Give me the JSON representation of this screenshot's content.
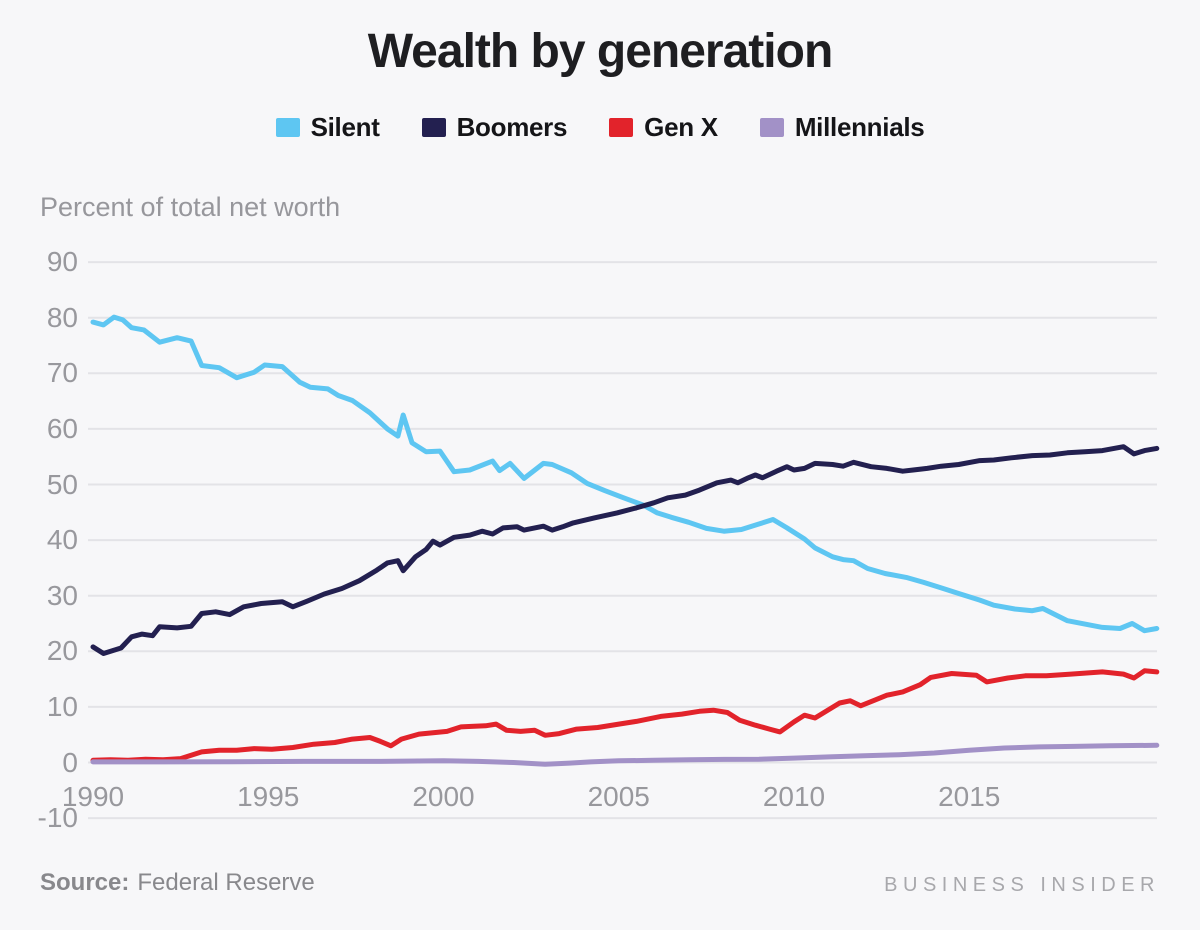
{
  "header": {
    "title": "Wealth by generation"
  },
  "axis_title": "Percent of total net worth",
  "footer": {
    "source_prefix": "Source:",
    "source_value": "Federal Reserve",
    "brand": "BUSINESS INSIDER"
  },
  "colors": {
    "background": "#f7f7f9",
    "gridline": "#e3e3e7",
    "axis_text": "#98989d",
    "title_text": "#1e1e21"
  },
  "chart_data": {
    "type": "line",
    "title": "Wealth by generation",
    "xlabel": "",
    "ylabel": "Percent of total net worth",
    "xlim": [
      1990,
      2020.4
    ],
    "ylim": [
      -10,
      90
    ],
    "x_ticks": [
      1990,
      1995,
      2000,
      2005,
      2010,
      2015
    ],
    "y_ticks": [
      90,
      80,
      70,
      60,
      50,
      40,
      30,
      20,
      10,
      0,
      -10
    ],
    "grid": "horizontal",
    "legend_position": "top",
    "series": [
      {
        "name": "Silent",
        "color": "#5ec6f2",
        "points": [
          [
            1990.0,
            79.2
          ],
          [
            1990.3,
            78.7
          ],
          [
            1990.6,
            80.1
          ],
          [
            1990.85,
            79.6
          ],
          [
            1991.1,
            78.2
          ],
          [
            1991.45,
            77.8
          ],
          [
            1991.9,
            75.6
          ],
          [
            1992.4,
            76.4
          ],
          [
            1992.8,
            75.8
          ],
          [
            1993.1,
            71.4
          ],
          [
            1993.6,
            71.0
          ],
          [
            1994.1,
            69.2
          ],
          [
            1994.6,
            70.2
          ],
          [
            1994.9,
            71.5
          ],
          [
            1995.4,
            71.2
          ],
          [
            1995.9,
            68.4
          ],
          [
            1996.2,
            67.5
          ],
          [
            1996.7,
            67.2
          ],
          [
            1997.0,
            66.0
          ],
          [
            1997.4,
            65.1
          ],
          [
            1997.9,
            62.9
          ],
          [
            1998.4,
            60.0
          ],
          [
            1998.7,
            58.7
          ],
          [
            1998.85,
            62.5
          ],
          [
            1999.1,
            57.5
          ],
          [
            1999.5,
            55.9
          ],
          [
            1999.9,
            56.0
          ],
          [
            2000.3,
            52.3
          ],
          [
            2000.75,
            52.6
          ],
          [
            2001.4,
            54.2
          ],
          [
            2001.6,
            52.5
          ],
          [
            2001.9,
            53.8
          ],
          [
            2002.3,
            51.1
          ],
          [
            2002.85,
            53.8
          ],
          [
            2003.1,
            53.6
          ],
          [
            2003.65,
            52.1
          ],
          [
            2004.1,
            50.2
          ],
          [
            2004.6,
            48.9
          ],
          [
            2005.1,
            47.7
          ],
          [
            2005.7,
            46.3
          ],
          [
            2006.1,
            44.9
          ],
          [
            2006.5,
            44.1
          ],
          [
            2007.0,
            43.2
          ],
          [
            2007.5,
            42.1
          ],
          [
            2008.0,
            41.6
          ],
          [
            2008.5,
            41.9
          ],
          [
            2009.0,
            42.9
          ],
          [
            2009.4,
            43.7
          ],
          [
            2009.8,
            42.2
          ],
          [
            2010.3,
            40.2
          ],
          [
            2010.6,
            38.6
          ],
          [
            2011.1,
            37.0
          ],
          [
            2011.4,
            36.5
          ],
          [
            2011.7,
            36.3
          ],
          [
            2012.1,
            34.9
          ],
          [
            2012.6,
            34.0
          ],
          [
            2013.2,
            33.3
          ],
          [
            2013.7,
            32.4
          ],
          [
            2014.2,
            31.4
          ],
          [
            2014.7,
            30.4
          ],
          [
            2015.3,
            29.2
          ],
          [
            2015.7,
            28.3
          ],
          [
            2016.3,
            27.6
          ],
          [
            2016.8,
            27.3
          ],
          [
            2017.1,
            27.7
          ],
          [
            2017.8,
            25.5
          ],
          [
            2018.3,
            24.9
          ],
          [
            2018.8,
            24.3
          ],
          [
            2019.3,
            24.1
          ],
          [
            2019.65,
            25.0
          ],
          [
            2020.0,
            23.7
          ],
          [
            2020.35,
            24.1
          ]
        ]
      },
      {
        "name": "Boomers",
        "color": "#232050",
        "points": [
          [
            1990.0,
            20.8
          ],
          [
            1990.3,
            19.6
          ],
          [
            1990.8,
            20.6
          ],
          [
            1991.1,
            22.6
          ],
          [
            1991.4,
            23.1
          ],
          [
            1991.7,
            22.8
          ],
          [
            1991.9,
            24.4
          ],
          [
            1992.4,
            24.2
          ],
          [
            1992.8,
            24.5
          ],
          [
            1993.1,
            26.8
          ],
          [
            1993.5,
            27.1
          ],
          [
            1993.9,
            26.6
          ],
          [
            1994.3,
            28.0
          ],
          [
            1994.8,
            28.6
          ],
          [
            1995.4,
            28.9
          ],
          [
            1995.7,
            28.0
          ],
          [
            1996.1,
            29.0
          ],
          [
            1996.6,
            30.3
          ],
          [
            1997.1,
            31.3
          ],
          [
            1997.6,
            32.7
          ],
          [
            1998.1,
            34.6
          ],
          [
            1998.4,
            35.9
          ],
          [
            1998.7,
            36.3
          ],
          [
            1998.85,
            34.5
          ],
          [
            1999.2,
            37.0
          ],
          [
            1999.5,
            38.3
          ],
          [
            1999.7,
            39.8
          ],
          [
            1999.9,
            39.1
          ],
          [
            2000.3,
            40.5
          ],
          [
            2000.75,
            40.9
          ],
          [
            2001.1,
            41.6
          ],
          [
            2001.4,
            41.1
          ],
          [
            2001.7,
            42.2
          ],
          [
            2002.1,
            42.4
          ],
          [
            2002.3,
            41.8
          ],
          [
            2002.85,
            42.5
          ],
          [
            2003.1,
            41.8
          ],
          [
            2003.4,
            42.4
          ],
          [
            2003.7,
            43.1
          ],
          [
            2004.3,
            44.0
          ],
          [
            2004.95,
            44.9
          ],
          [
            2005.5,
            45.8
          ],
          [
            2006.0,
            46.7
          ],
          [
            2006.4,
            47.6
          ],
          [
            2006.9,
            48.1
          ],
          [
            2007.3,
            49.0
          ],
          [
            2007.8,
            50.3
          ],
          [
            2008.2,
            50.8
          ],
          [
            2008.4,
            50.3
          ],
          [
            2008.7,
            51.2
          ],
          [
            2008.9,
            51.7
          ],
          [
            2009.1,
            51.2
          ],
          [
            2009.5,
            52.4
          ],
          [
            2009.8,
            53.2
          ],
          [
            2010.0,
            52.6
          ],
          [
            2010.3,
            52.9
          ],
          [
            2010.6,
            53.8
          ],
          [
            2011.1,
            53.6
          ],
          [
            2011.4,
            53.3
          ],
          [
            2011.7,
            54.0
          ],
          [
            2012.2,
            53.2
          ],
          [
            2012.65,
            52.9
          ],
          [
            2013.1,
            52.4
          ],
          [
            2013.4,
            52.6
          ],
          [
            2013.8,
            52.9
          ],
          [
            2014.2,
            53.3
          ],
          [
            2014.7,
            53.6
          ],
          [
            2015.3,
            54.3
          ],
          [
            2015.7,
            54.4
          ],
          [
            2016.2,
            54.8
          ],
          [
            2016.8,
            55.2
          ],
          [
            2017.3,
            55.3
          ],
          [
            2017.8,
            55.7
          ],
          [
            2018.3,
            55.9
          ],
          [
            2018.8,
            56.1
          ],
          [
            2019.4,
            56.8
          ],
          [
            2019.7,
            55.5
          ],
          [
            2020.0,
            56.1
          ],
          [
            2020.35,
            56.5
          ]
        ]
      },
      {
        "name": "Gen X",
        "color": "#e2232b",
        "points": [
          [
            1990.0,
            0.4
          ],
          [
            1990.5,
            0.5
          ],
          [
            1991.0,
            0.4
          ],
          [
            1991.5,
            0.6
          ],
          [
            1992.0,
            0.5
          ],
          [
            1992.5,
            0.7
          ],
          [
            1993.1,
            1.9
          ],
          [
            1993.6,
            2.2
          ],
          [
            1994.1,
            2.2
          ],
          [
            1994.6,
            2.5
          ],
          [
            1995.1,
            2.4
          ],
          [
            1995.7,
            2.7
          ],
          [
            1996.3,
            3.3
          ],
          [
            1996.9,
            3.6
          ],
          [
            1997.4,
            4.2
          ],
          [
            1997.9,
            4.5
          ],
          [
            1998.2,
            3.8
          ],
          [
            1998.5,
            3.0
          ],
          [
            1998.8,
            4.2
          ],
          [
            1999.3,
            5.1
          ],
          [
            2000.1,
            5.6
          ],
          [
            2000.5,
            6.4
          ],
          [
            2000.8,
            6.5
          ],
          [
            2001.2,
            6.6
          ],
          [
            2001.5,
            6.9
          ],
          [
            2001.8,
            5.8
          ],
          [
            2002.2,
            5.6
          ],
          [
            2002.6,
            5.8
          ],
          [
            2002.9,
            4.9
          ],
          [
            2003.3,
            5.2
          ],
          [
            2003.8,
            6.0
          ],
          [
            2004.4,
            6.3
          ],
          [
            2005.0,
            6.9
          ],
          [
            2005.5,
            7.4
          ],
          [
            2006.2,
            8.3
          ],
          [
            2006.8,
            8.7
          ],
          [
            2007.3,
            9.2
          ],
          [
            2007.7,
            9.4
          ],
          [
            2008.1,
            9.0
          ],
          [
            2008.45,
            7.6
          ],
          [
            2008.9,
            6.7
          ],
          [
            2009.3,
            6.0
          ],
          [
            2009.6,
            5.5
          ],
          [
            2010.0,
            7.3
          ],
          [
            2010.3,
            8.5
          ],
          [
            2010.6,
            8.0
          ],
          [
            2011.3,
            10.7
          ],
          [
            2011.6,
            11.1
          ],
          [
            2011.9,
            10.2
          ],
          [
            2012.3,
            11.2
          ],
          [
            2012.65,
            12.1
          ],
          [
            2013.1,
            12.7
          ],
          [
            2013.6,
            14.0
          ],
          [
            2013.9,
            15.3
          ],
          [
            2014.5,
            16.0
          ],
          [
            2015.2,
            15.7
          ],
          [
            2015.5,
            14.5
          ],
          [
            2016.1,
            15.2
          ],
          [
            2016.6,
            15.6
          ],
          [
            2017.2,
            15.6
          ],
          [
            2017.9,
            15.9
          ],
          [
            2018.8,
            16.3
          ],
          [
            2019.4,
            15.9
          ],
          [
            2019.7,
            15.2
          ],
          [
            2020.0,
            16.5
          ],
          [
            2020.35,
            16.3
          ]
        ]
      },
      {
        "name": "Millennials",
        "color": "#a291c7",
        "points": [
          [
            1990.0,
            0.1
          ],
          [
            1992.0,
            0.1
          ],
          [
            1994.0,
            0.15
          ],
          [
            1996.0,
            0.2
          ],
          [
            1998.0,
            0.2
          ],
          [
            2000.0,
            0.3
          ],
          [
            2001.0,
            0.2
          ],
          [
            2002.0,
            0.0
          ],
          [
            2002.9,
            -0.3
          ],
          [
            2003.6,
            -0.1
          ],
          [
            2004.2,
            0.1
          ],
          [
            2005.0,
            0.3
          ],
          [
            2006.0,
            0.4
          ],
          [
            2007.0,
            0.5
          ],
          [
            2008.0,
            0.55
          ],
          [
            2009.0,
            0.6
          ],
          [
            2010.0,
            0.8
          ],
          [
            2011.0,
            1.0
          ],
          [
            2012.0,
            1.2
          ],
          [
            2013.0,
            1.4
          ],
          [
            2014.0,
            1.7
          ],
          [
            2015.0,
            2.2
          ],
          [
            2016.0,
            2.6
          ],
          [
            2017.0,
            2.8
          ],
          [
            2018.0,
            2.9
          ],
          [
            2019.0,
            3.0
          ],
          [
            2020.35,
            3.1
          ]
        ]
      }
    ]
  }
}
